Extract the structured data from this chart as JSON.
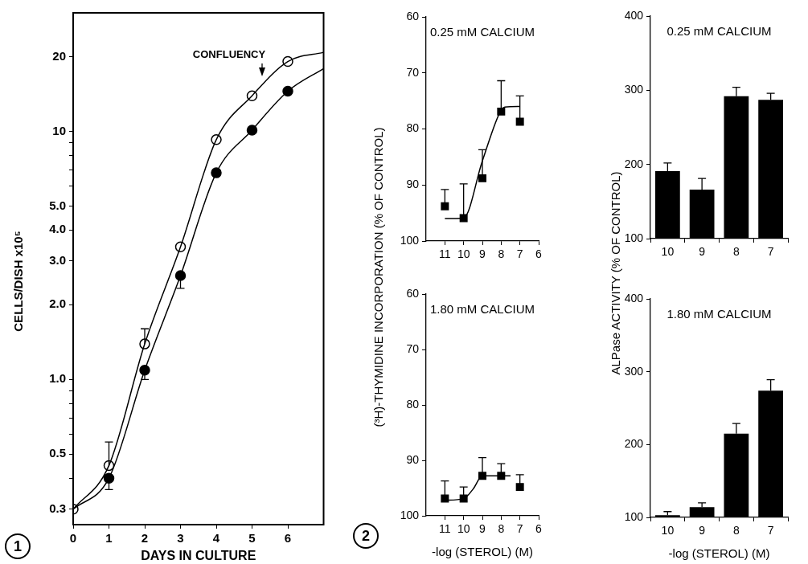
{
  "chart_data": [
    {
      "type": "scatter",
      "xlabel": "DAYS IN CULTURE",
      "ylabel": "CELLS/DISH x10⁵",
      "xlim": [
        0,
        7
      ],
      "xticks": [
        0,
        1,
        2,
        3,
        4,
        5,
        6
      ],
      "ylim": [
        0.26,
        30
      ],
      "log": "y",
      "yticks": [
        0.3,
        {
          "value": 0.4,
          "label": null
        },
        0.5,
        {
          "value": 0.6,
          "label": null
        },
        {
          "value": 0.7,
          "label": null
        },
        {
          "value": 0.8,
          "label": null
        },
        {
          "value": 0.9,
          "label": null
        },
        {
          "value": 1,
          "label": "1.0"
        },
        {
          "value": 2,
          "label": "2.0"
        },
        {
          "value": 3,
          "label": "3.0"
        },
        {
          "value": 4,
          "label": "4.0"
        },
        {
          "value": 5,
          "label": "5.0"
        },
        {
          "value": 6,
          "label": null
        },
        {
          "value": 7,
          "label": null
        },
        {
          "value": 8,
          "label": null
        },
        {
          "value": 9,
          "label": null
        },
        10,
        20
      ],
      "series": [
        {
          "type": "line",
          "marker": "none",
          "color": "#000000",
          "x": [
            0,
            1,
            2,
            3,
            4,
            5,
            6,
            7
          ],
          "values": [
            0.3,
            0.45,
            1.39,
            3.42,
            9.25,
            13.9,
            19.1,
            20.8
          ]
        },
        {
          "type": "line",
          "marker": "none",
          "color": "#000000",
          "x": [
            0,
            1,
            2,
            3,
            4,
            5,
            6,
            7
          ],
          "values": [
            0.3,
            0.4,
            1.09,
            2.62,
            6.8,
            10.1,
            14.5,
            17.9
          ]
        },
        {
          "type": "scatter",
          "marker": "circle",
          "color": "#ffffff",
          "x": [
            0,
            1,
            2,
            3,
            4,
            5,
            6
          ],
          "values": [
            0.3,
            0.45,
            1.39,
            3.42,
            9.25,
            13.9,
            19.1
          ],
          "errors": [
            null,
            [
              0.45,
              0.56
            ],
            [
              1.39,
              1.6
            ],
            null,
            null,
            null,
            null
          ]
        },
        {
          "type": "scatter",
          "marker": "circle",
          "color": "#000000",
          "x": [
            1,
            2,
            3,
            4,
            5,
            6
          ],
          "values": [
            0.4,
            1.09,
            2.62,
            6.8,
            10.1,
            14.5
          ],
          "errors": [
            [
              0.36,
              0.4
            ],
            [
              1.0,
              1.09
            ],
            [
              2.33,
              2.62
            ],
            null,
            null,
            null
          ]
        }
      ],
      "annotations": [
        "CONFLUENCY",
        "1"
      ]
    },
    {
      "type": "scatter",
      "title": "0.25 mM CALCIUM",
      "ylabel": "(³H)-THYMIDINE INCORPORATION (% OF CONTROL)",
      "xlim": [
        12,
        6
      ],
      "xticks": [
        11,
        10,
        9,
        8,
        7,
        6
      ],
      "ylim": [
        100,
        60
      ],
      "yticks": [
        60,
        70,
        80,
        90,
        100
      ],
      "series": [
        {
          "type": "line",
          "marker": "none",
          "color": "#000000",
          "x": [
            11,
            10,
            9,
            8,
            7.8,
            7
          ],
          "values": [
            96.0,
            95.9,
            85.7,
            76.6,
            76.1,
            76.0
          ]
        },
        {
          "type": "scatter",
          "marker": "square",
          "color": "#000000",
          "x": [
            11,
            10,
            9,
            8,
            7
          ],
          "values": [
            93.8,
            95.9,
            88.8,
            76.9,
            78.7
          ],
          "errors": [
            [
              90.8,
              93.8
            ],
            [
              89.8,
              95.9
            ],
            [
              83.7,
              88.8
            ],
            [
              71.4,
              76.9
            ],
            [
              74.1,
              78.7
            ]
          ]
        }
      ]
    },
    {
      "type": "bar",
      "title": "0.25 mM CALCIUM",
      "ylabel": "ALPase ACTIVITY (% OF CONTROL)",
      "categories": [
        "10",
        "9",
        "8",
        "7"
      ],
      "ylim": [
        100,
        400
      ],
      "yticks": [
        100,
        200,
        300,
        400
      ],
      "values": [
        191,
        166,
        292,
        287
      ],
      "color": "#000000",
      "errors": [
        [
          191,
          202
        ],
        [
          166,
          181
        ],
        [
          292,
          304
        ],
        [
          287,
          296
        ]
      ]
    },
    {
      "type": "scatter",
      "title": "1.80 mM CALCIUM",
      "xlabel": "-log (STEROL) (M)",
      "xlim": [
        12,
        6
      ],
      "xticks": [
        11,
        10,
        9,
        8,
        7,
        6
      ],
      "ylim": [
        100,
        60
      ],
      "yticks": [
        60,
        70,
        80,
        90,
        100
      ],
      "series": [
        {
          "type": "line",
          "marker": "none",
          "color": "#000000",
          "x": [
            11,
            10,
            9.5,
            9,
            8,
            7.5
          ],
          "values": [
            97.2,
            96.9,
            95.2,
            92.8,
            92.8,
            92.8
          ]
        },
        {
          "type": "scatter",
          "marker": "square",
          "color": "#000000",
          "x": [
            11,
            10,
            9,
            8,
            7
          ],
          "values": [
            96.9,
            96.9,
            92.8,
            92.8,
            94.8
          ],
          "errors": [
            [
              93.7,
              96.9
            ],
            [
              94.8,
              96.9
            ],
            [
              89.5,
              92.8
            ],
            [
              90.6,
              92.8
            ],
            [
              92.6,
              94.8
            ]
          ]
        }
      ],
      "annotations": [
        "2"
      ]
    },
    {
      "type": "bar",
      "title": "1.80 mM CALCIUM",
      "xlabel": "-log (STEROL) (M)",
      "categories": [
        "10",
        "9",
        "8",
        "7"
      ],
      "ylim": [
        100,
        400
      ],
      "yticks": [
        100,
        200,
        300,
        400
      ],
      "values": [
        103,
        114,
        215,
        274
      ],
      "color": "#000000",
      "errors": [
        [
          103,
          108
        ],
        [
          114,
          120
        ],
        [
          215,
          229
        ],
        [
          274,
          289
        ]
      ]
    }
  ]
}
